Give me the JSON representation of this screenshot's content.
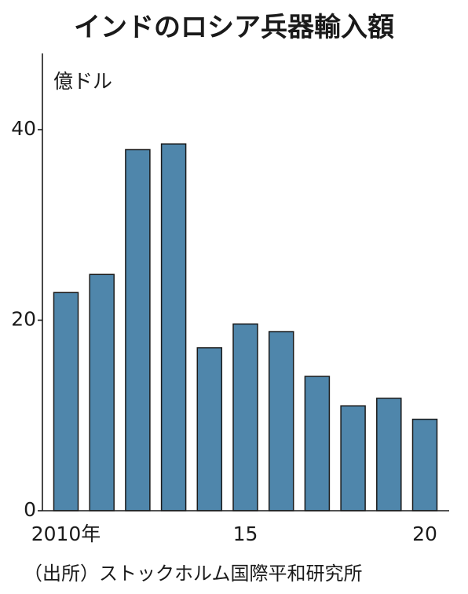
{
  "chart_data": {
    "type": "bar",
    "title": "インドのロシア兵器輸入額",
    "ylabel": "億ドル",
    "xlabel": "",
    "categories": [
      "2010",
      "2011",
      "2012",
      "2013",
      "2014",
      "2015",
      "2016",
      "2017",
      "2018",
      "2019",
      "2020"
    ],
    "values": [
      22.9,
      24.8,
      37.9,
      38.5,
      17.1,
      19.6,
      18.8,
      14.1,
      11.0,
      11.8,
      9.6
    ],
    "ylim": [
      0,
      48
    ],
    "yticks": [
      "0",
      "20",
      "40"
    ],
    "yticks_values": [
      0,
      20,
      40
    ],
    "xtick_labels": [
      {
        "index": 0,
        "label": "2010年"
      },
      {
        "index": 5,
        "label": "15"
      },
      {
        "index": 10,
        "label": "20"
      }
    ],
    "grid": false,
    "legend": "none",
    "bar_color": "#4f86ab",
    "source": "（出所）ストックホルム国際平和研究所"
  }
}
